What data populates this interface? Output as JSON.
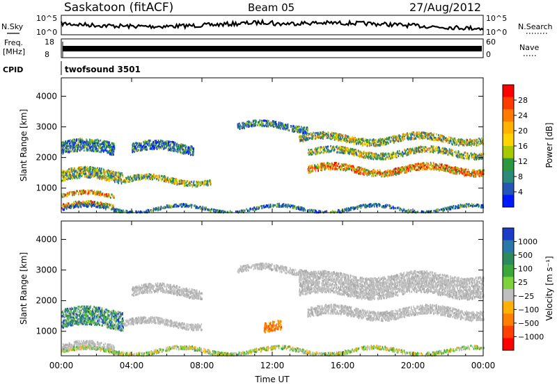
{
  "header": {
    "station": "Saskatoon (fitACF)",
    "beam": "Beam 05",
    "date": "27/Aug/2012"
  },
  "strip_panels": {
    "nsky_label": "N.Sky",
    "nsky_ticks": [
      "10^5",
      "10^0"
    ],
    "nsearch_label": "N.Search",
    "nsearch_ticks": [
      "10^5",
      "10^0"
    ],
    "freq_label": "Freq.",
    "freq_unit": "[MHz]",
    "freq_ticks": [
      "18",
      "8"
    ],
    "nave_label": "Nave",
    "nave_ticks": [
      "60",
      "0"
    ],
    "cpid_label": "CPID",
    "cpid_value": "twofsound 3501"
  },
  "chart_data": [
    {
      "type": "heatmap",
      "name": "power",
      "ylabel": "Slant Range [km]",
      "y_ticks": [
        "1000",
        "2000",
        "3000",
        "4000"
      ],
      "ylim": [
        200,
        4600
      ],
      "colorbar_label": "Power [dB]",
      "colorbar_ticks": [
        "28",
        "24",
        "20",
        "16",
        "12",
        "8",
        "4"
      ],
      "colorbar_colors": [
        "#ff0000",
        "#ff3c00",
        "#ff7a00",
        "#ffb300",
        "#ffd400",
        "#a8c800",
        "#2f9640",
        "#2c8a78",
        "#2456b8",
        "#0018ff"
      ],
      "echo_bands": [
        {
          "t_start": 0.0,
          "t_end": 3.0,
          "range_center": 400,
          "range_width": 150,
          "level": "high"
        },
        {
          "t_start": 0.0,
          "t_end": 3.0,
          "range_center": 750,
          "range_width": 120,
          "level": "high"
        },
        {
          "t_start": 0.0,
          "t_end": 3.5,
          "range_center": 1400,
          "range_width": 350,
          "level": "medium"
        },
        {
          "t_start": 0.0,
          "t_end": 3.0,
          "range_center": 2300,
          "range_width": 400,
          "level": "low"
        },
        {
          "t_start": 3.5,
          "t_end": 8.5,
          "range_center": 1250,
          "range_width": 180,
          "level": "medium"
        },
        {
          "t_start": 4.0,
          "t_end": 7.5,
          "range_center": 2300,
          "range_width": 300,
          "level": "low"
        },
        {
          "t_start": 10.0,
          "t_end": 14.0,
          "range_center": 3000,
          "range_width": 200,
          "level": "low"
        },
        {
          "t_start": 13.5,
          "t_end": 24.0,
          "range_center": 2600,
          "range_width": 220,
          "level": "medium"
        },
        {
          "t_start": 14.0,
          "t_end": 24.0,
          "range_center": 2150,
          "range_width": 200,
          "level": "medium"
        },
        {
          "t_start": 14.0,
          "t_end": 24.0,
          "range_center": 1600,
          "range_width": 220,
          "level": "high"
        },
        {
          "t_start": 0.0,
          "t_end": 24.0,
          "range_center": 320,
          "range_width": 100,
          "level": "low"
        }
      ]
    },
    {
      "type": "heatmap",
      "name": "velocity",
      "ylabel": "Slant Range [km]",
      "y_ticks": [
        "1000",
        "2000",
        "3000",
        "4000"
      ],
      "ylim": [
        200,
        4600
      ],
      "colorbar_label": "Velocity [m s⁻¹]",
      "colorbar_ticks": [
        "1000",
        "500",
        "100",
        "25",
        "−25",
        "−100",
        "−500",
        "−1000"
      ],
      "colorbar_colors": [
        "#1a3cc8",
        "#2a78a8",
        "#2e8a5a",
        "#3da83a",
        "#7ed23e",
        "#bfbfbf",
        "#ffb000",
        "#ff8000",
        "#ff4000",
        "#ff0000"
      ],
      "echo_bands": [
        {
          "t_start": 0.0,
          "t_end": 3.5,
          "range_center": 1400,
          "range_width": 600,
          "level": "mixed"
        },
        {
          "t_start": 0.0,
          "t_end": 3.0,
          "range_center": 450,
          "range_width": 250,
          "level": "ground"
        },
        {
          "t_start": 3.5,
          "t_end": 8.0,
          "range_center": 1250,
          "range_width": 200,
          "level": "ground"
        },
        {
          "t_start": 4.0,
          "t_end": 8.0,
          "range_center": 2300,
          "range_width": 300,
          "level": "ground"
        },
        {
          "t_start": 10.0,
          "t_end": 14.0,
          "range_center": 3000,
          "range_width": 200,
          "level": "ground"
        },
        {
          "t_start": 13.5,
          "t_end": 24.0,
          "range_center": 2500,
          "range_width": 700,
          "level": "ground"
        },
        {
          "t_start": 14.0,
          "t_end": 24.0,
          "range_center": 1600,
          "range_width": 300,
          "level": "ground"
        },
        {
          "t_start": 11.5,
          "t_end": 12.5,
          "range_center": 1100,
          "range_width": 300,
          "level": "away"
        },
        {
          "t_start": 0.0,
          "t_end": 24.0,
          "range_center": 350,
          "range_width": 120,
          "level": "toward"
        }
      ]
    }
  ],
  "x_axis": {
    "ticks": [
      "00:00",
      "04:00",
      "08:00",
      "12:00",
      "16:00",
      "20:00",
      "00:00"
    ],
    "label": "Time UT"
  }
}
